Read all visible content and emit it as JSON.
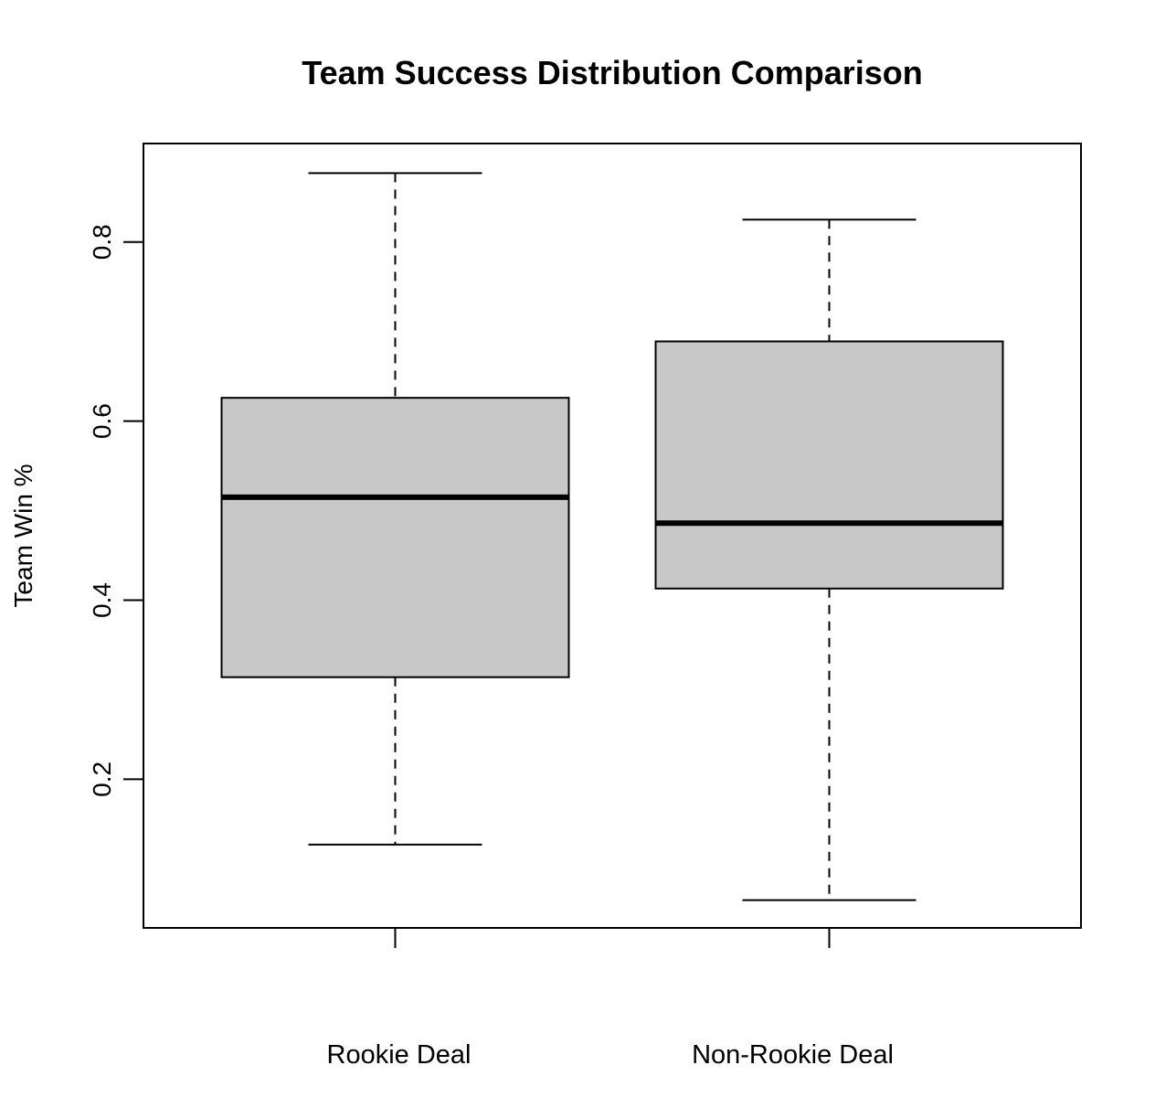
{
  "chart_data": {
    "type": "boxplot",
    "title": "Team Success Distribution Comparison",
    "xlabel": "",
    "ylabel": "Team Win %",
    "ylim": [
      0.034,
      0.91
    ],
    "yticks": [
      0.2,
      0.4,
      0.6,
      0.8
    ],
    "ytick_labels": [
      "0.2",
      "0.4",
      "0.6",
      "0.8"
    ],
    "grid": false,
    "legend": "none",
    "box_fill": "#c8c8c8",
    "categories": [
      "Rookie Deal",
      "Non-Rookie Deal"
    ],
    "boxes": [
      {
        "category": "Rookie Deal",
        "min": 0.127,
        "q1": 0.314,
        "median": 0.515,
        "q3": 0.626,
        "max": 0.877
      },
      {
        "category": "Non-Rookie Deal",
        "min": 0.065,
        "q1": 0.413,
        "median": 0.486,
        "q3": 0.689,
        "max": 0.825
      }
    ]
  }
}
